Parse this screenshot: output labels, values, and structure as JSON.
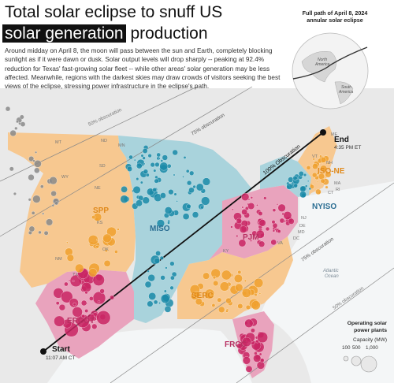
{
  "header": {
    "title_line1": "Total solar eclipse to snuff US",
    "title_line2_highlight": "solar generation",
    "title_line2_rest": " production",
    "intro": "Around midday on April 8, the moon will pass between the sun and Earth, completely blocking sunlight as if it were dawn or dusk. Solar output levels will drop sharply -- peaking at 92.4% reduction for Texas' fast-growing solar fleet -- while other areas' solar generation may be less affected. Meanwhile, regions with the darkest skies may draw crowds of visitors seeking the best views of the eclipse, stressing power infrastructure in the eclipse's path."
  },
  "inset": {
    "caption_line1": "Full path of April 8, 2024",
    "caption_line2": "annular solar eclipse",
    "label_north_america": "North America",
    "label_south_america": "South America"
  },
  "obscuration_labels": {
    "obs50": "50% obscuration",
    "obs75_top": "75% obscuration",
    "obs100": "100% Obscuration",
    "obs75_bottom": "75% obscuration",
    "obs50_bottom": "50% obscuration"
  },
  "path_points": {
    "start_label": "Start",
    "start_time": "11:07 AM CT",
    "end_label": "End",
    "end_time": "4:35 PM ET"
  },
  "regions": {
    "SPP": "SPP",
    "MISO": "MISO",
    "PJM": "PJM",
    "ISO_NE": "ISO-NE",
    "NYISO": "NYISO",
    "SERC": "SERC",
    "ERCOT": "ERCOT",
    "FRCC": "FRCC"
  },
  "state_labels": [
    "MT",
    "ND",
    "MN",
    "SD",
    "WY",
    "NE",
    "KS",
    "OK",
    "NM",
    "TX",
    "ME",
    "NH",
    "VT",
    "MA",
    "RI",
    "CT",
    "NJ",
    "DE",
    "MD",
    "DC",
    "KY",
    "VA"
  ],
  "water_label": "Atlantic Ocean",
  "legend": {
    "title_line1": "Operating solar",
    "title_line2": "power plants",
    "subtitle": "Capacity (MW)",
    "sizes": [
      "100",
      "500",
      "1,000"
    ]
  },
  "colors": {
    "SPP": "#f7c890",
    "MISO": "#a9d3dc",
    "PJM": "#e9a3bd",
    "ISO_NE": "#f7c890",
    "NYISO": "#a9d3dc",
    "SERC": "#f7c890",
    "ERCOT": "#e9a3bd",
    "FRCC": "#e9a3bd",
    "label_orange": "#e08a1c",
    "label_blue": "#2b6e93",
    "label_red": "#b73062",
    "dot_orange": "#f0a02e",
    "dot_blue": "#1a8aa8",
    "dot_red": "#c92664",
    "dot_grey": "#8a8a8a"
  }
}
